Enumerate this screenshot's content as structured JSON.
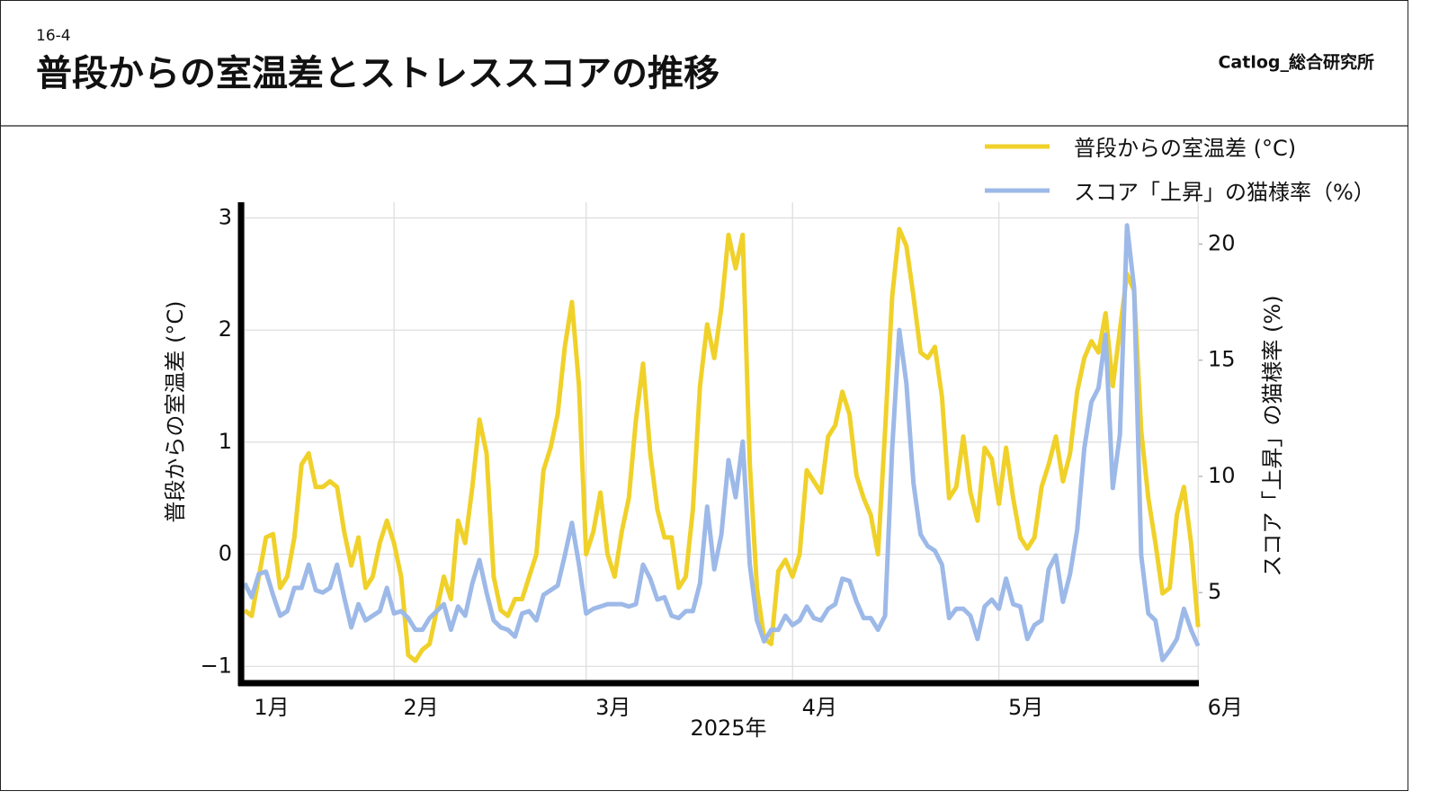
{
  "header": {
    "section": "16-4",
    "title": "普段からの室温差とストレススコアの推移",
    "brand": "Catlog_総合研究所"
  },
  "chart_data": {
    "type": "line",
    "xlabel": "2025年",
    "ylabel": "普段からの室温差 (°C)",
    "y2label": "スコア「上昇」の猫様率 (%)",
    "legend": "upper right",
    "grid": true,
    "x": [
      0,
      1,
      2,
      3,
      4,
      5,
      6,
      7,
      8,
      9,
      10,
      11,
      12,
      13,
      14,
      15,
      16,
      17,
      18,
      19,
      20,
      21,
      22,
      23,
      24,
      25,
      26,
      27,
      28,
      29,
      30,
      31,
      32,
      33,
      34,
      35,
      36,
      37,
      38,
      39,
      40,
      41,
      42,
      43,
      44,
      45,
      46,
      47,
      48,
      49,
      50,
      51,
      52,
      53,
      54,
      55,
      56,
      57,
      58,
      59,
      60,
      61,
      62,
      63,
      64,
      65,
      66,
      67,
      68,
      69,
      70,
      71,
      72,
      73,
      74,
      75,
      76,
      77,
      78,
      79,
      80,
      81,
      82,
      83,
      84,
      85,
      86,
      87,
      88,
      89,
      90,
      91,
      92,
      93,
      94,
      95,
      96,
      97,
      98,
      99,
      100,
      101,
      102,
      103,
      104,
      105,
      106,
      107,
      108,
      109,
      110,
      111,
      112,
      113,
      114,
      115,
      116,
      117,
      118,
      119,
      120,
      121,
      122,
      123,
      124,
      125,
      126,
      127,
      128,
      129,
      130,
      131,
      132,
      133,
      134
    ],
    "xlim": [
      -0.5,
      134.1
    ],
    "xticks": [
      {
        "value": 0,
        "label": "1月"
      },
      {
        "value": 21,
        "label": "2月"
      },
      {
        "value": 48,
        "label": "3月"
      },
      {
        "value": 77,
        "label": "4月"
      },
      {
        "value": 106,
        "label": "5月"
      },
      {
        "value": 134,
        "label": "6月"
      }
    ],
    "ylim": [
      -1.15,
      3.14
    ],
    "yticks": [
      {
        "value": -1,
        "label": "−1"
      },
      0,
      1,
      2,
      3
    ],
    "y2lim": [
      1.1,
      21.8
    ],
    "y2ticks": [
      5,
      10,
      15,
      20
    ],
    "series": [
      {
        "name": "普段からの室温差 (°C)",
        "color": "#f0d12a",
        "axis": "y",
        "values": [
          -0.5,
          -0.55,
          -0.2,
          0.15,
          0.18,
          -0.3,
          -0.2,
          0.15,
          0.8,
          0.9,
          0.6,
          0.6,
          0.65,
          0.6,
          0.2,
          -0.1,
          0.15,
          -0.3,
          -0.2,
          0.1,
          0.3,
          0.1,
          -0.2,
          -0.9,
          -0.95,
          -0.85,
          -0.8,
          -0.5,
          -0.2,
          -0.4,
          0.3,
          0.1,
          0.6,
          1.2,
          0.9,
          -0.2,
          -0.5,
          -0.55,
          -0.4,
          -0.4,
          -0.2,
          0.0,
          0.75,
          0.95,
          1.25,
          1.85,
          2.25,
          1.5,
          0.0,
          0.2,
          0.55,
          0.0,
          -0.2,
          0.2,
          0.5,
          1.2,
          1.7,
          0.9,
          0.4,
          0.15,
          0.15,
          -0.3,
          -0.2,
          0.4,
          1.5,
          2.05,
          1.75,
          2.2,
          2.85,
          2.55,
          2.85,
          0.8,
          -0.3,
          -0.75,
          -0.8,
          -0.15,
          -0.05,
          -0.2,
          0.0,
          0.75,
          0.65,
          0.55,
          1.05,
          1.15,
          1.45,
          1.25,
          0.7,
          0.5,
          0.35,
          0.0,
          1.1,
          2.3,
          2.9,
          2.75,
          2.3,
          1.8,
          1.75,
          1.85,
          1.4,
          0.5,
          0.6,
          1.05,
          0.55,
          0.3,
          0.95,
          0.85,
          0.45,
          0.95,
          0.5,
          0.15,
          0.05,
          0.15,
          0.6,
          0.8,
          1.05,
          0.65,
          0.9,
          1.45,
          1.75,
          1.9,
          1.8,
          2.15,
          1.5,
          2.0,
          2.5,
          2.35,
          1.1,
          0.5,
          0.1,
          -0.35,
          -0.3,
          0.35,
          0.6,
          0.1,
          -0.65
        ]
      },
      {
        "name": "スコア「上昇」の猫様率（%）",
        "color": "#9db9e8",
        "axis": "y2",
        "values": [
          5.4,
          4.8,
          5.8,
          5.9,
          4.9,
          4.0,
          4.2,
          5.2,
          5.2,
          6.2,
          5.1,
          5.0,
          5.2,
          6.2,
          4.8,
          3.5,
          4.5,
          3.8,
          4.0,
          4.2,
          5.2,
          4.1,
          4.2,
          3.9,
          3.4,
          3.4,
          3.9,
          4.2,
          4.5,
          3.4,
          4.4,
          4.0,
          5.4,
          6.4,
          5.0,
          3.8,
          3.5,
          3.4,
          3.1,
          4.1,
          4.2,
          3.8,
          4.9,
          5.1,
          5.3,
          6.6,
          8.0,
          6.2,
          4.1,
          4.3,
          4.4,
          4.5,
          4.5,
          4.5,
          4.4,
          4.5,
          6.2,
          5.6,
          4.7,
          4.8,
          4.0,
          3.9,
          4.2,
          4.2,
          5.4,
          8.7,
          6.0,
          7.5,
          10.7,
          9.1,
          11.5,
          6.2,
          3.8,
          2.9,
          3.4,
          3.4,
          4.0,
          3.6,
          3.8,
          4.4,
          3.9,
          3.8,
          4.3,
          4.5,
          5.6,
          5.5,
          4.6,
          3.9,
          3.9,
          3.4,
          4.0,
          11.2,
          16.3,
          14.0,
          9.7,
          7.5,
          7.0,
          6.8,
          6.2,
          3.9,
          4.3,
          4.3,
          4.0,
          3.0,
          4.4,
          4.7,
          4.3,
          5.6,
          4.5,
          4.4,
          3.0,
          3.6,
          3.8,
          6.0,
          6.6,
          4.6,
          5.8,
          7.7,
          11.2,
          13.2,
          13.8,
          16.1,
          9.5,
          11.8,
          20.8,
          18.1,
          6.6,
          4.1,
          3.8,
          2.1,
          2.5,
          3.0,
          4.3,
          3.4,
          2.7
        ]
      }
    ]
  }
}
